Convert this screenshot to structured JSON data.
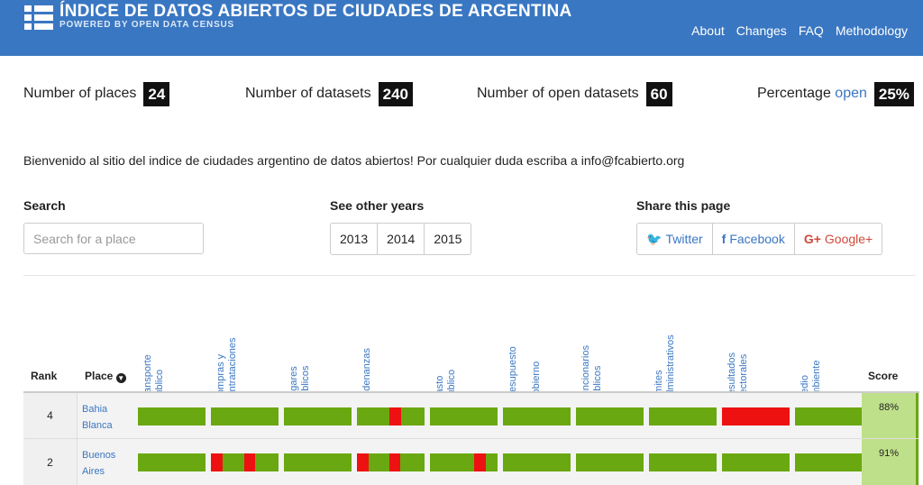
{
  "header": {
    "title": "ÍNDICE DE DATOS ABIERTOS DE CIUDADES DE ARGENTINA",
    "subtitle": "POWERED BY OPEN DATA CENSUS",
    "nav": [
      "About",
      "Changes",
      "FAQ",
      "Methodology"
    ]
  },
  "stats": {
    "places_label": "Number of places",
    "places_value": "24",
    "datasets_label": "Number of datasets",
    "datasets_value": "240",
    "open_label": "Number of open datasets",
    "open_value": "60",
    "pct_label": "Percentage",
    "pct_highlight": "open",
    "pct_value": "25%"
  },
  "welcome": "Bienvenido al sitio del indice de ciudades argentino de datos abiertos! Por cualquier duda escriba a info@fcabierto.org",
  "search": {
    "label": "Search",
    "placeholder": "Search for a place"
  },
  "years": {
    "label": "See other years",
    "items": [
      "2013",
      "2014",
      "2015"
    ]
  },
  "share": {
    "label": "Share this page",
    "twitter": "Twitter",
    "facebook": "Facebook",
    "google": "Google+"
  },
  "table": {
    "rank_header": "Rank",
    "place_header": "Place",
    "score_header": "Score",
    "columns": [
      "Transporte\nPúblico",
      "Compras y\ncontrataciones",
      "Lugares\npúblicos",
      "Ordenanzas",
      "Gasto\nPúblico",
      "Presupuesto\nde\nGobierno",
      "Funcionarios\npúblicos",
      "Límites\nAdministrativos",
      "Resultados\nelectorales",
      "Medio\nAmbiente"
    ],
    "rows": [
      {
        "rank": "4",
        "place_line1": "Bahia",
        "place_line2": "Blanca",
        "score": "88%"
      },
      {
        "rank": "2",
        "place_line1": "Buenos",
        "place_line2": "Aires",
        "score": "91%"
      }
    ]
  },
  "colors": {
    "brand": "#3a77c2",
    "good": "#6aa811",
    "bad": "#ee1111",
    "score_bg": "#bfe08a"
  }
}
